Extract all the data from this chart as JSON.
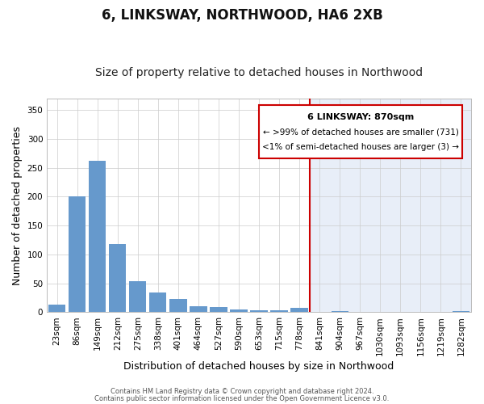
{
  "title": "6, LINKSWAY, NORTHWOOD, HA6 2XB",
  "subtitle": "Size of property relative to detached houses in Northwood",
  "xlabel": "Distribution of detached houses by size in Northwood",
  "ylabel": "Number of detached properties",
  "footer_lines": [
    "Contains HM Land Registry data © Crown copyright and database right 2024.",
    "Contains public sector information licensed under the Open Government Licence v3.0."
  ],
  "categories": [
    "23sqm",
    "86sqm",
    "149sqm",
    "212sqm",
    "275sqm",
    "338sqm",
    "401sqm",
    "464sqm",
    "527sqm",
    "590sqm",
    "653sqm",
    "715sqm",
    "778sqm",
    "841sqm",
    "904sqm",
    "967sqm",
    "1030sqm",
    "1093sqm",
    "1156sqm",
    "1219sqm",
    "1282sqm"
  ],
  "values": [
    13,
    200,
    262,
    118,
    54,
    34,
    23,
    10,
    9,
    5,
    4,
    4,
    8,
    0,
    2,
    0,
    0,
    0,
    0,
    0,
    2
  ],
  "bar_color": "#6699cc",
  "highlight_line_index": 13,
  "highlight_line_color": "#cc0000",
  "right_bg_color": "#e8eef8",
  "legend_box_color": "#cc0000",
  "legend_text_line1": "6 LINKSWAY: 870sqm",
  "legend_text_line2": "← >99% of detached houses are smaller (731)",
  "legend_text_line3": "<1% of semi-detached houses are larger (3) →",
  "ylim": [
    0,
    370
  ],
  "yticks": [
    0,
    50,
    100,
    150,
    200,
    250,
    300,
    350
  ],
  "bg_color": "#ffffff",
  "grid_color": "#cccccc",
  "title_fontsize": 12,
  "subtitle_fontsize": 10,
  "axis_label_fontsize": 9,
  "tick_fontsize": 7.5
}
